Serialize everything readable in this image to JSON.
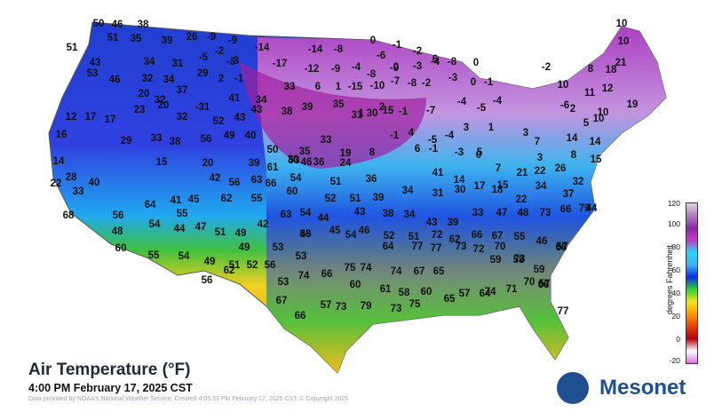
{
  "title": "Air Temperature (°F)",
  "subtitle": "4:00 PM February 17, 2025 CST",
  "credit": "Data provided by NOAA's National Weather Service. Created 4:05:33 PM February 17, 2025 CST. © Copyright 2025",
  "logo": {
    "text": "Mesonet"
  },
  "legend": {
    "title": "degrees Fahrenheit",
    "ticks": [
      "120",
      "100",
      "80",
      "60",
      "40",
      "20",
      "0",
      "-20"
    ],
    "colors": [
      "#dad6de",
      "#b07cbf",
      "#8b2aa6",
      "#c33cbf",
      "#27d7f2",
      "#3bb0f5",
      "#0a2ee8",
      "#2fcf2f",
      "#f5e31a",
      "#f59a00",
      "#e8400a",
      "#b3000a",
      "#ffffff",
      "#e070e0"
    ]
  },
  "station_values": [
    "50",
    "46",
    "38",
    "51",
    "35",
    "39",
    "26",
    "-9",
    "-9",
    "51",
    "-2",
    "-3",
    "-14",
    "-14",
    "-8",
    "0",
    "-1",
    "-2",
    "10",
    "10",
    "43",
    "34",
    "31",
    "-5",
    "-3",
    "-17",
    "-12",
    "-9",
    "-4",
    "-6",
    "0",
    "6",
    "21",
    "53",
    "46",
    "32",
    "34",
    "29",
    "2",
    "-1",
    "-8",
    "-9",
    "-3",
    "-4",
    "-8",
    "0",
    "-2",
    "8",
    "18",
    "20",
    "32",
    "37",
    "41",
    "34",
    "33",
    "6",
    "1",
    "-15",
    "-10",
    "-7",
    "-8",
    "-2",
    "-3",
    "0",
    "-1",
    "10",
    "11",
    "12",
    "19",
    "23",
    "20",
    "-31",
    "43",
    "39",
    "35",
    "1",
    "2",
    "-1",
    "-7",
    "-4",
    "-5",
    "-4",
    "-6",
    "2",
    "5",
    "10",
    "10",
    "12",
    "17",
    "17",
    "32",
    "52",
    "43",
    "38",
    "31",
    "30",
    "15",
    "-1",
    "-5",
    "-4",
    "3",
    "1",
    "3",
    "7",
    "14",
    "14",
    "16",
    "29",
    "33",
    "38",
    "56",
    "49",
    "40",
    "50",
    "30",
    "35",
    "33",
    "19",
    "4",
    "-1",
    "-3",
    "0",
    "7",
    "14",
    "15",
    "20",
    "39",
    "61",
    "53",
    "46",
    "36",
    "24",
    "8",
    "6",
    "5",
    "3",
    "8",
    "15",
    "22",
    "28",
    "40",
    "42",
    "56",
    "63",
    "66",
    "54",
    "51",
    "36",
    "41",
    "14",
    "17",
    "15",
    "21",
    "22",
    "26",
    "32",
    "33",
    "41",
    "45",
    "62",
    "55",
    "60",
    "52",
    "51",
    "39",
    "34",
    "31",
    "30",
    "18",
    "22",
    "34",
    "37",
    "44",
    "64",
    "55",
    "63",
    "54",
    "44",
    "43",
    "38",
    "34",
    "43",
    "39",
    "33",
    "47",
    "48",
    "73",
    "66",
    "79",
    "68",
    "56",
    "54",
    "47",
    "51",
    "49",
    "42",
    "46",
    "45",
    "46",
    "52",
    "51",
    "72",
    "62",
    "66",
    "67",
    "55",
    "46",
    "57",
    "48",
    "44",
    "49",
    "53",
    "53",
    "54",
    "64",
    "77",
    "77",
    "73",
    "72",
    "70",
    "73",
    "68",
    "60",
    "55",
    "54",
    "49",
    "51",
    "52",
    "56",
    "53",
    "75",
    "74",
    "74",
    "67",
    "65",
    "59",
    "58",
    "59",
    "57",
    "56",
    "62",
    "53",
    "74",
    "66",
    "60",
    "61",
    "58",
    "60",
    "57",
    "64",
    "71",
    "70",
    "66",
    "67",
    "66",
    "57",
    "73",
    "79",
    "73",
    "75",
    "65",
    "74",
    "77"
  ]
}
